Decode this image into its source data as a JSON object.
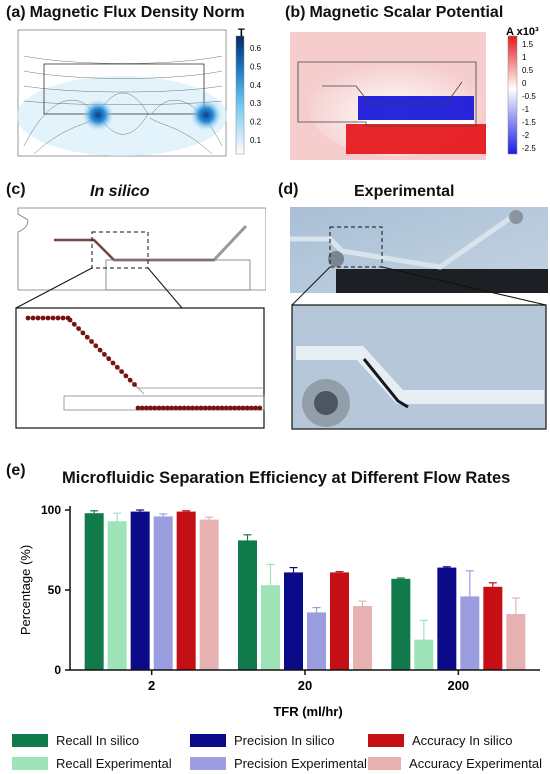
{
  "panels": {
    "a": {
      "letter": "(a)",
      "title": "Magnetic Flux Density Norm",
      "unit": "T",
      "colorbar_ticks": [
        "0.6",
        "0.5",
        "0.4",
        "0.3",
        "0.2",
        "0.1"
      ]
    },
    "b": {
      "letter": "(b)",
      "title": "Magnetic Scalar Potential",
      "unit": "A x10³",
      "colorbar_ticks": [
        "1.5",
        "1",
        "0.5",
        "0",
        "-0.5",
        "-1",
        "-1.5",
        "-2",
        "-2.5"
      ]
    },
    "c": {
      "letter": "(c)",
      "title": "In silico"
    },
    "d": {
      "letter": "(d)",
      "title": "Experimental"
    },
    "e": {
      "letter": "(e)",
      "title": "Microfluidic Separation Efficiency at Different Flow Rates"
    }
  },
  "colors": {
    "recall_in_silico": "#117a4a",
    "recall_experimental": "#9fe3b8",
    "precision_in_silico": "#0b0b8a",
    "precision_experimental": "#9a9ee0",
    "accuracy_in_silico": "#c40f14",
    "accuracy_experimental": "#e8b1b1",
    "particle": "#7a1010",
    "field_blue": "#3aa6e0"
  },
  "chart_data": {
    "type": "bar",
    "title": "Microfluidic Separation Efficiency at Different Flow Rates",
    "xlabel": "TFR (ml/hr)",
    "ylabel": "Percentage (%)",
    "categories": [
      "2",
      "20",
      "200"
    ],
    "ylim": [
      0,
      100
    ],
    "yticks": [
      "0",
      "50",
      "100"
    ],
    "legend_position": "bottom",
    "series": [
      {
        "name": "Recall In silico",
        "values": [
          98,
          81,
          57
        ],
        "errors": [
          1.5,
          3.5,
          0.5
        ]
      },
      {
        "name": "Recall Experimental",
        "values": [
          93,
          53,
          19
        ],
        "errors": [
          5,
          13,
          12
        ]
      },
      {
        "name": "Precision In silico",
        "values": [
          99,
          61,
          64
        ],
        "errors": [
          1,
          3,
          0.5
        ]
      },
      {
        "name": "Precision Experimental",
        "values": [
          96,
          36,
          46
        ],
        "errors": [
          1.5,
          3,
          16
        ]
      },
      {
        "name": "Accuracy In silico",
        "values": [
          99,
          61,
          52
        ],
        "errors": [
          0.5,
          0.5,
          2.5
        ]
      },
      {
        "name": "Accuracy Experimental",
        "values": [
          94,
          40,
          35
        ],
        "errors": [
          1.5,
          3,
          10
        ]
      }
    ]
  },
  "legend": {
    "items": [
      "Recall In silico",
      "Precision In silico",
      "Accuracy In silico",
      "Recall Experimental",
      "Precision Experimental",
      "Accuracy Experimental"
    ]
  }
}
